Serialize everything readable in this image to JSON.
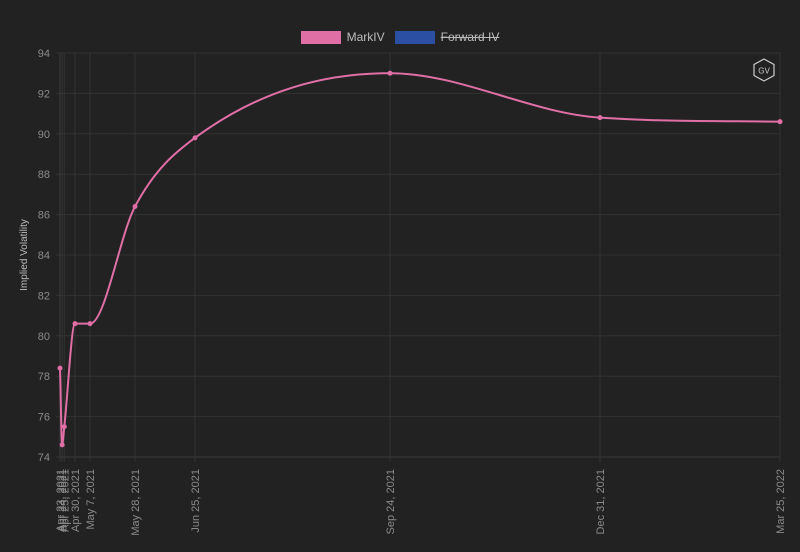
{
  "chart_data": {
    "type": "line",
    "title": "",
    "xlabel": "",
    "ylabel": "Implied Volatility",
    "ylim": [
      74,
      94
    ],
    "y_ticks": [
      74,
      76,
      78,
      80,
      82,
      84,
      86,
      88,
      90,
      92,
      94
    ],
    "grid": true,
    "legend_position": "top",
    "x_dates": [
      "2021-04-23",
      "2021-04-24",
      "2021-04-25",
      "2021-04-30",
      "2021-05-07",
      "2021-05-28",
      "2021-06-25",
      "2021-09-24",
      "2021-12-31",
      "2022-03-25"
    ],
    "x_tick_labels": [
      "Apr 23, 2021",
      "Apr 24, 2021",
      "Apr 25, 2021",
      "Apr 30, 2021",
      "May 7, 2021",
      "May 28, 2021",
      "Jun 25, 2021",
      "Sep 24, 2021",
      "Dec 31, 2021",
      "Mar 25, 2022"
    ],
    "series": [
      {
        "name": "MarkIV",
        "color": "#e06fa5",
        "hidden": false,
        "values": [
          78.4,
          74.6,
          75.5,
          80.6,
          80.6,
          86.4,
          89.8,
          93.0,
          90.8,
          90.6
        ]
      },
      {
        "name": "Forward IV",
        "color": "#2a4fa3",
        "hidden": true,
        "values": []
      }
    ]
  },
  "watermark": {
    "text": "GV"
  },
  "colors": {
    "background": "#222222",
    "grid": "#333333",
    "tick_text": "#8a8a8a"
  }
}
